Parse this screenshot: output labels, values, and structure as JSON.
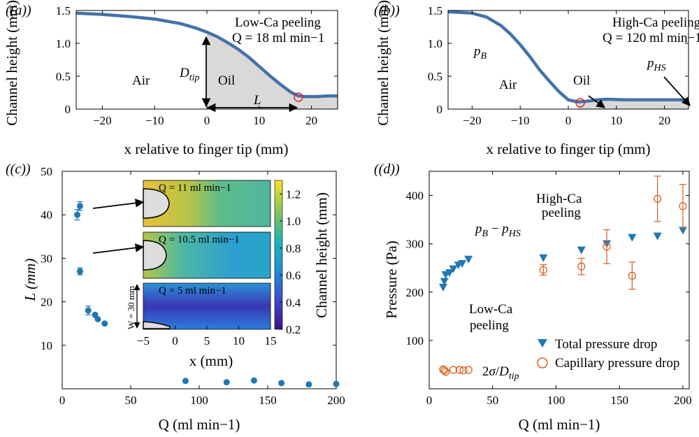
{
  "chart_data": [
    {
      "panel": "(a)",
      "type": "line",
      "xlabel": "x relative to finger tip (mm)",
      "ylabel": "Channel height (mm)",
      "xlim": [
        -25,
        25
      ],
      "ylim": [
        0,
        1.5
      ],
      "xticks": [
        "−20",
        "−10",
        "0",
        "10",
        "20"
      ],
      "yticks": [
        "0",
        "0.5",
        "1.0",
        "1.5"
      ],
      "title": "Low-Ca peeling",
      "subtitle": "Q = 18 ml min−1",
      "x": [
        -25,
        -20,
        -15,
        -10,
        -5,
        -2,
        0,
        2,
        4,
        6,
        8,
        10,
        12,
        14,
        16,
        17.5,
        19,
        21,
        23,
        25
      ],
      "y": [
        1.46,
        1.44,
        1.41,
        1.37,
        1.3,
        1.23,
        1.17,
        1.1,
        1.01,
        0.91,
        0.79,
        0.65,
        0.51,
        0.38,
        0.26,
        0.2,
        0.19,
        0.19,
        0.2,
        0.2
      ],
      "annotations": [
        "Air",
        "Oil",
        "D",
        "tip",
        "L"
      ]
    },
    {
      "panel": "(b)",
      "type": "line",
      "xlabel": "x relative to finger tip (mm)",
      "ylabel": "Channel height (mm)",
      "xlim": [
        -25,
        25
      ],
      "ylim": [
        0,
        1.5
      ],
      "xticks": [
        "−20",
        "−10",
        "0",
        "10",
        "20"
      ],
      "yticks": [
        "0",
        "0.5",
        "1.0",
        "1.5"
      ],
      "title": "High-Ca peeling",
      "subtitle": "Q = 120 ml min−1",
      "x": [
        -25,
        -20,
        -17,
        -14,
        -12,
        -10,
        -8,
        -6,
        -4,
        -2,
        0,
        2,
        4,
        6,
        8,
        12,
        16,
        20,
        25
      ],
      "y": [
        1.48,
        1.46,
        1.4,
        1.27,
        1.14,
        0.98,
        0.8,
        0.6,
        0.43,
        0.27,
        0.14,
        0.11,
        0.12,
        0.14,
        0.15,
        0.14,
        0.14,
        0.14,
        0.14
      ],
      "annotations": [
        "pB",
        "Air",
        "Oil",
        "pHS"
      ]
    },
    {
      "panel": "(c)",
      "type": "scatter",
      "xlabel": "Q (ml min−1)",
      "ylabel": "L (mm)",
      "xlim": [
        0,
        200
      ],
      "ylim": [
        0,
        50
      ],
      "xticks": [
        "0",
        "50",
        "100",
        "150",
        "200"
      ],
      "yticks": [
        "10",
        "20",
        "30",
        "40",
        "50"
      ],
      "points": [
        {
          "x": 11,
          "y": 40,
          "err": 1.2
        },
        {
          "x": 13,
          "y": 42,
          "err": 1
        },
        {
          "x": 13,
          "y": 27,
          "err": 0.8
        },
        {
          "x": 19,
          "y": 18,
          "err": 1
        },
        {
          "x": 24,
          "y": 17
        },
        {
          "x": 26,
          "y": 16
        },
        {
          "x": 31,
          "y": 15
        },
        {
          "x": 90,
          "y": 1.8
        },
        {
          "x": 120,
          "y": 1.5
        },
        {
          "x": 140,
          "y": 1.9
        },
        {
          "x": 160,
          "y": 1.3
        },
        {
          "x": 180,
          "y": 1.0
        },
        {
          "x": 200,
          "y": 1.1
        }
      ],
      "inset": {
        "labels": [
          "Q = 11 ml min−1",
          "Q = 10.5 ml min−1",
          "Q = 5 ml min−1"
        ],
        "xlabel": "x (mm)",
        "xticks": [
          "−5",
          "0",
          "5",
          "10",
          "15"
        ],
        "width_label": "W = 30 mm",
        "colorbar_label": "Channel height (mm)",
        "colorbar_ticks": [
          "0.2",
          "0.4",
          "0.6",
          "0.8",
          "1.0",
          "1.2"
        ]
      }
    },
    {
      "panel": "(d)",
      "type": "scatter",
      "xlabel": "Q (ml min−1)",
      "ylabel": "Pressure (Pa)",
      "xlim": [
        0,
        205
      ],
      "ylim": [
        0,
        450
      ],
      "xticks": [
        "0",
        "50",
        "100",
        "150",
        "200"
      ],
      "yticks": [
        "100",
        "200",
        "300",
        "400"
      ],
      "series": [
        {
          "name": "Total pressure drop",
          "color": "#1f77b4",
          "x": [
            11,
            12,
            13,
            16,
            19,
            23,
            26,
            31,
            90,
            120,
            140,
            160,
            180,
            200
          ],
          "y": [
            210,
            222,
            236,
            240,
            248,
            256,
            259,
            268,
            271,
            287,
            300,
            313,
            316,
            328
          ]
        },
        {
          "name": "Capillary pressure drop",
          "color": "#d95f1e",
          "x": [
            11,
            12,
            13,
            19,
            24,
            27,
            31,
            90,
            120,
            140,
            160,
            180,
            200
          ],
          "y": [
            40,
            38,
            35,
            39,
            39,
            38,
            39,
            246,
            253,
            294,
            234,
            393,
            378
          ],
          "err": [
            0,
            0,
            0,
            0,
            0,
            0,
            0,
            11,
            17,
            35,
            28,
            47,
            45
          ]
        }
      ],
      "annotations": [
        "pB − pHS",
        "High-Ca",
        "peeling",
        "Low-Ca",
        "peeling",
        "2σ/Dtip"
      ]
    }
  ]
}
